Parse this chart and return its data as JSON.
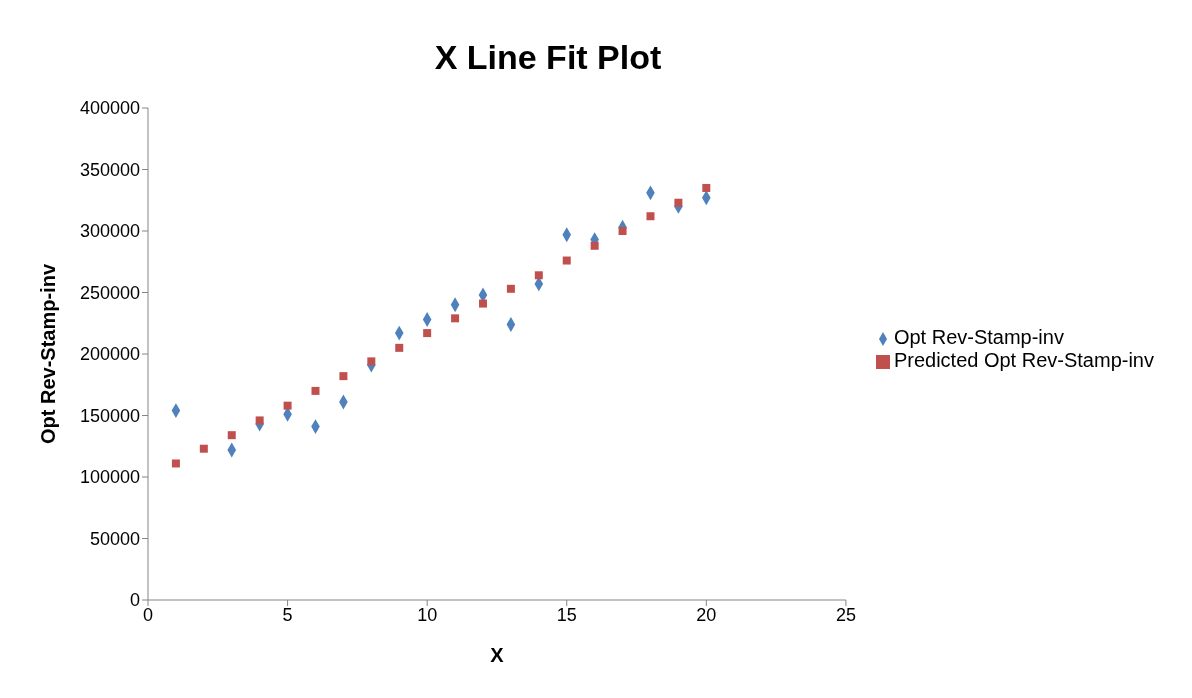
{
  "chart_data": {
    "type": "scatter",
    "title": "X Line Fit  Plot",
    "xlabel": "X",
    "ylabel": "Opt Rev-Stamp-inv",
    "x": [
      1,
      2,
      3,
      4,
      5,
      6,
      7,
      8,
      9,
      10,
      11,
      12,
      13,
      14,
      15,
      16,
      17,
      18,
      19,
      20
    ],
    "series": [
      {
        "name": "Opt Rev-Stamp-inv",
        "color": "#4f81bd",
        "marker": "diamond",
        "values": [
          154000,
          null,
          122000,
          143000,
          151000,
          141000,
          161000,
          191000,
          217000,
          228000,
          240000,
          248000,
          224000,
          257000,
          297000,
          293000,
          303000,
          331000,
          320000,
          327000
        ]
      },
      {
        "name": "Predicted Opt Rev-Stamp-inv",
        "color": "#c0504d",
        "marker": "square",
        "values": [
          111000,
          123000,
          134000,
          146000,
          158000,
          170000,
          182000,
          194000,
          205000,
          217000,
          229000,
          241000,
          253000,
          264000,
          276000,
          288000,
          300000,
          312000,
          323000,
          335000
        ]
      }
    ],
    "xlim": [
      0,
      25
    ],
    "xticks": [
      0,
      5,
      10,
      15,
      20,
      25
    ],
    "ylim": [
      0,
      400000
    ],
    "yticks": [
      0,
      50000,
      100000,
      150000,
      200000,
      250000,
      300000,
      350000,
      400000
    ],
    "grid": false,
    "legend": "right"
  }
}
